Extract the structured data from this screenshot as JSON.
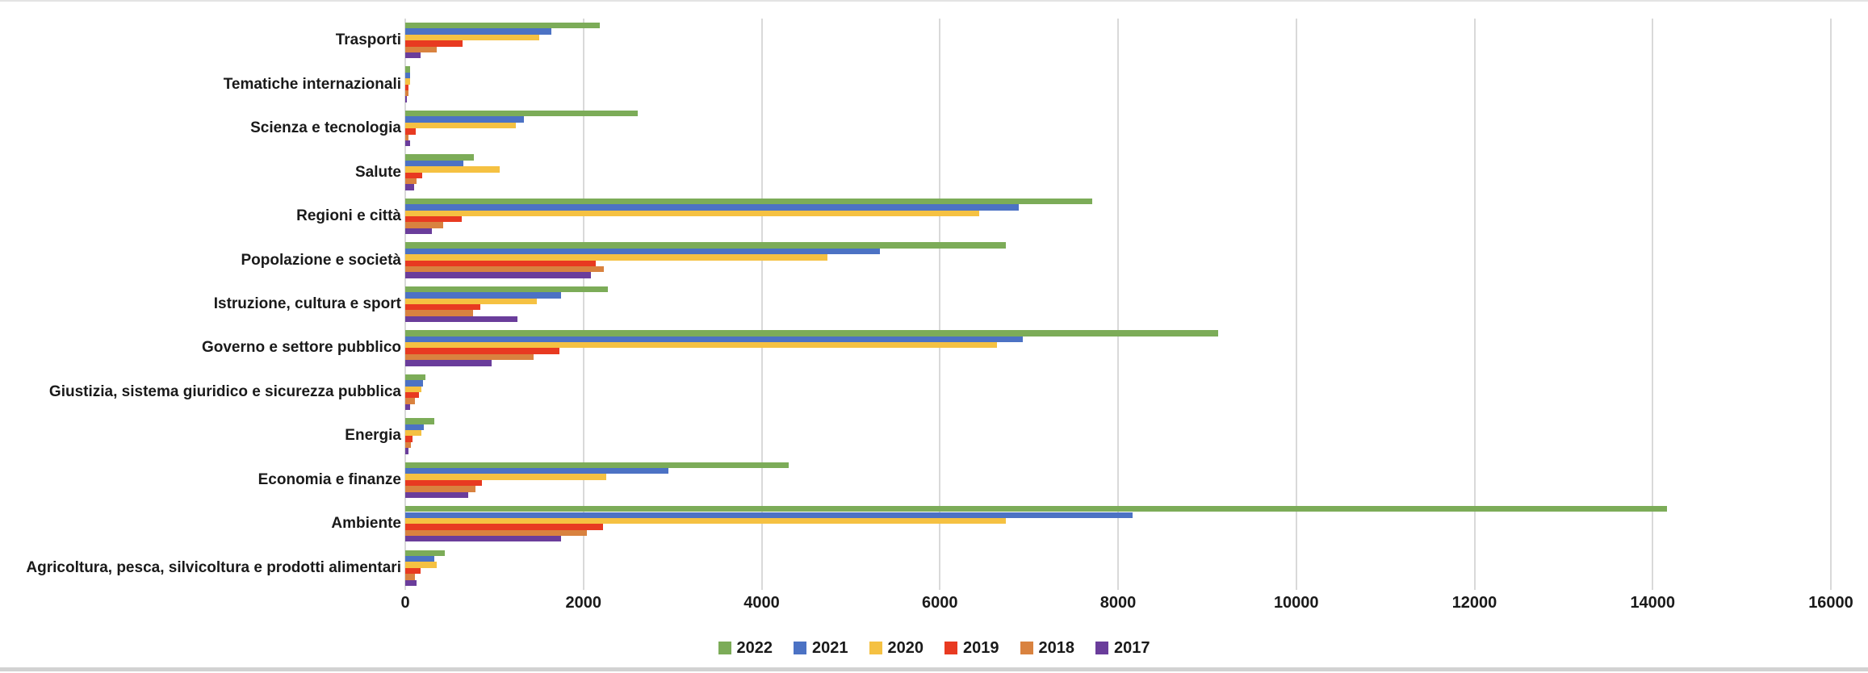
{
  "chart_data": {
    "type": "bar",
    "orientation": "horizontal",
    "title": "",
    "xlabel": "",
    "ylabel": "",
    "xlim": [
      0,
      16000
    ],
    "xticks": [
      0,
      2000,
      4000,
      6000,
      8000,
      10000,
      12000,
      14000,
      16000
    ],
    "xtick_labels": [
      "0",
      "2000",
      "4000",
      "6000",
      "8000",
      "10000",
      "12000",
      "14000",
      "16000"
    ],
    "grid": true,
    "legend_position": "bottom",
    "categories": [
      "Trasporti",
      "Tematiche internazionali",
      "Scienza e tecnologia",
      "Salute",
      "Regioni e città",
      "Popolazione e società",
      "Istruzione, cultura e sport",
      "Governo e settore pubblico",
      "Giustizia, sistema giuridico e sicurezza pubblica",
      "Energia",
      "Economia e finanze",
      "Ambiente",
      "Agricoltura, pesca, silvicoltura e prodotti alimentari"
    ],
    "series": [
      {
        "name": "2022",
        "color": "#7CAC58",
        "values": [
          2180,
          50,
          2610,
          770,
          7710,
          6740,
          2270,
          9120,
          230,
          330,
          4300,
          14160,
          440
        ]
      },
      {
        "name": "2021",
        "color": "#4C72C4",
        "values": [
          1640,
          50,
          1330,
          650,
          6890,
          5330,
          1750,
          6930,
          200,
          210,
          2950,
          8160,
          330
        ]
      },
      {
        "name": "2020",
        "color": "#F5C142",
        "values": [
          1500,
          50,
          1240,
          1060,
          6440,
          4740,
          1480,
          6640,
          180,
          180,
          2260,
          6740,
          350
        ]
      },
      {
        "name": "2019",
        "color": "#E83A21",
        "values": [
          640,
          40,
          120,
          190,
          630,
          2140,
          840,
          1730,
          150,
          80,
          860,
          2220,
          170
        ]
      },
      {
        "name": "2018",
        "color": "#D9823F",
        "values": [
          350,
          40,
          40,
          130,
          430,
          2230,
          760,
          1440,
          110,
          60,
          790,
          2040,
          110
        ]
      },
      {
        "name": "2017",
        "color": "#6A3D9B",
        "values": [
          170,
          15,
          50,
          100,
          300,
          2080,
          1260,
          970,
          50,
          35,
          710,
          1750,
          130
        ]
      }
    ],
    "plot_colors": {
      "gridline": "#d9d9d9",
      "text": "#1a1a1a",
      "background": "#ffffff"
    }
  }
}
